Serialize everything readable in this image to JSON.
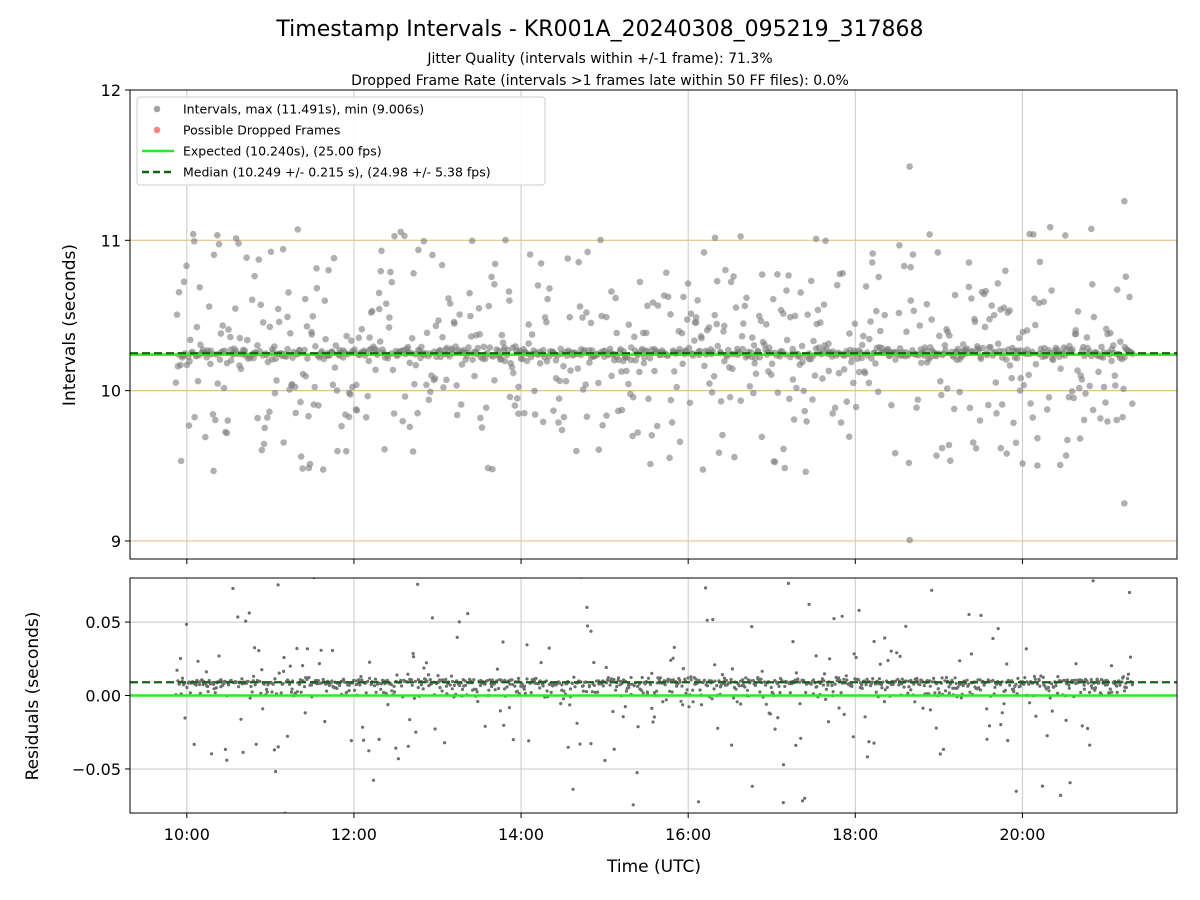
{
  "chart_data": {
    "title": "Timestamp Intervals - KR001A_20240308_095219_317868",
    "subtitle1": "Jitter Quality (intervals within +/-1 frame): 71.3%",
    "subtitle2": "Dropped Frame Rate (intervals >1 frames late within 50 FF files): 0.0%",
    "type": "scatter",
    "xlabel": "Time (UTC)",
    "x_range_hours": [
      9.32,
      21.85
    ],
    "x_ticks": [
      {
        "value": 10,
        "label": "10:00"
      },
      {
        "value": 12,
        "label": "12:00"
      },
      {
        "value": 14,
        "label": "14:00"
      },
      {
        "value": 16,
        "label": "16:00"
      },
      {
        "value": 18,
        "label": "18:00"
      },
      {
        "value": 20,
        "label": "20:00"
      }
    ],
    "data_x_range_hours": [
      9.87,
      21.32
    ],
    "top_panel": {
      "ylabel": "Intervals (seconds)",
      "ylim": [
        8.88,
        12.0
      ],
      "y_ticks": [
        9,
        10,
        11,
        12
      ],
      "horizontal_guides": [
        9,
        10,
        11
      ],
      "expected_interval": 10.24,
      "median_interval": 10.249,
      "interval_max": 11.491,
      "interval_min": 9.006,
      "legend": [
        {
          "label": "Intervals, max (11.491s), min (9.006s)",
          "kind": "point",
          "color": "#8c8c8c"
        },
        {
          "label": "Possible Dropped Frames",
          "kind": "point",
          "color": "#ff6666"
        },
        {
          "label": "Expected (10.240s), (25.00 fps)",
          "kind": "line",
          "color": "#22ee22"
        },
        {
          "label": "Median (10.249 +/- 0.215 s), (24.98 +/- 5.38 fps)",
          "kind": "dashed",
          "color": "#116611"
        }
      ],
      "legend_position": "upper-left",
      "grid": "vertical",
      "points_note": "approximately 1100 interval samples spread between 9.0 s and 11.5 s, densest near 10.25 s"
    },
    "bottom_panel": {
      "ylabel": "Residuals (seconds)",
      "ylim": [
        -0.08,
        0.08
      ],
      "y_ticks": [
        {
          "value": 0.05,
          "label": "0.05"
        },
        {
          "value": 0.0,
          "label": "0.00"
        },
        {
          "value": -0.05,
          "label": "−0.05"
        }
      ],
      "expected_residual": 0.0,
      "median_residual": 0.009,
      "grid": "both"
    },
    "colors": {
      "points": "#808080",
      "expected": "#22ee22",
      "median": "#116611",
      "guide": "#e0c585",
      "grid": "#c8c8c8"
    }
  }
}
